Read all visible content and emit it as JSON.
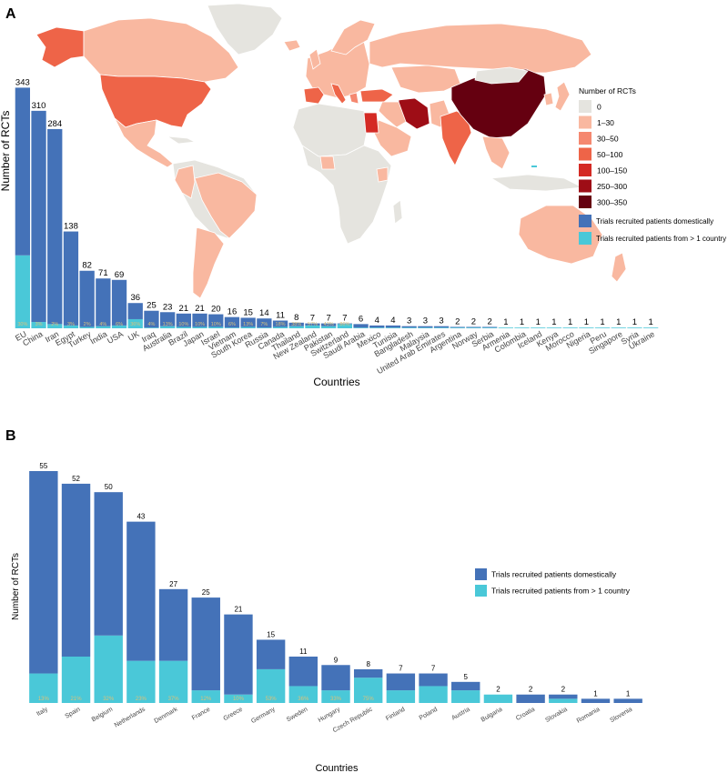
{
  "colors": {
    "domestic": "#4472b8",
    "multi": "#4ac8d8",
    "pct_text": "#d9c27a",
    "land_default": "#e5e4df",
    "ocean": "#ffffff",
    "legend_scale": [
      "#e5e4df",
      "#f9b8a0",
      "#f58870",
      "#ee6448",
      "#d42a24",
      "#9e0d16",
      "#650010"
    ]
  },
  "chart_data": [
    {
      "type": "bar",
      "panel_label": "A",
      "xlabel": "Countries",
      "ylabel": "Number of RCTs",
      "ylim": [
        0,
        350
      ],
      "categories": [
        "EU",
        "China",
        "Iran",
        "Egypt",
        "Turkey",
        "India",
        "USA",
        "UK",
        "Iraq",
        "Australia",
        "Brazil",
        "Japan",
        "Israel",
        "Vietnam",
        "South Korea",
        "Russia",
        "Canada",
        "Thailand",
        "New Zealand",
        "Pakistan",
        "Switzerland",
        "Saudi Arabia",
        "Mexico",
        "Tunisia",
        "Bangladesh",
        "Malaysia",
        "United Arab Emirates",
        "Argentina",
        "Norway",
        "Serbia",
        "Armenia",
        "Colombia",
        "Iceland",
        "Kenya",
        "Morocco",
        "Nigeria",
        "Peru",
        "Singapore",
        "Syria",
        "Ukraine"
      ],
      "totals": [
        343,
        310,
        284,
        138,
        82,
        71,
        69,
        36,
        25,
        23,
        21,
        21,
        20,
        16,
        15,
        14,
        11,
        8,
        7,
        7,
        7,
        6,
        4,
        4,
        3,
        3,
        3,
        2,
        2,
        2,
        1,
        1,
        1,
        1,
        1,
        1,
        1,
        1,
        1,
        1
      ],
      "series": [
        {
          "name": "Trials recruited patients domestically",
          "values": [
            239,
            301,
            278,
            134,
            80,
            68,
            65,
            23,
            24,
            20,
            19,
            19,
            18,
            15,
            13,
            13,
            9,
            5,
            3,
            4,
            1,
            5,
            3,
            3,
            2,
            2,
            2,
            1,
            1,
            1,
            0,
            0,
            0,
            0,
            0,
            0,
            0,
            0,
            0,
            0
          ]
        },
        {
          "name": "Trials recruited patients from > 1 country",
          "values": [
            104,
            9,
            6,
            4,
            2,
            3,
            4,
            13,
            1,
            3,
            2,
            2,
            2,
            1,
            2,
            1,
            2,
            3,
            4,
            3,
            6,
            1,
            1,
            1,
            1,
            1,
            1,
            1,
            1,
            1,
            1,
            1,
            1,
            1,
            1,
            1,
            1,
            1,
            1,
            1
          ]
        }
      ],
      "percent_labels": [
        "30%",
        "3%",
        "2%",
        "3%",
        "2%",
        "4%",
        "6%",
        "36%",
        "4%",
        "13%",
        "10%",
        "10%",
        "10%",
        "6%",
        "13%",
        "7%",
        "18%",
        "38%",
        "57%",
        "43%",
        "86%",
        "",
        "",
        "",
        "",
        "",
        "",
        "",
        "",
        "",
        "",
        "",
        "",
        "",
        "",
        "",
        "",
        "",
        "",
        ""
      ],
      "legend": {
        "title": "Number of RCTs",
        "scale_labels": [
          "0",
          "1–30",
          "30–50",
          "50–100",
          "100–150",
          "250–300",
          "300–350"
        ],
        "series_labels": [
          "Trials recruited patients domestically",
          "Trials recruited patients from > 1 country"
        ]
      }
    },
    {
      "type": "bar",
      "panel_label": "B",
      "xlabel": "Countries",
      "ylabel": "Number of RCTs",
      "ylim": [
        0,
        55
      ],
      "categories": [
        "Italy",
        "Spain",
        "Belgium",
        "Netherlands",
        "Denmark",
        "France",
        "Greece",
        "Germany",
        "Sweden",
        "Hungary",
        "Czech Republic",
        "Finland",
        "Poland",
        "Austria",
        "Bulgaria",
        "Croatia",
        "Slovakia",
        "Romania",
        "Slovenia"
      ],
      "totals": [
        55,
        52,
        50,
        43,
        27,
        25,
        21,
        15,
        11,
        9,
        8,
        7,
        7,
        5,
        2,
        2,
        2,
        1,
        1
      ],
      "series": [
        {
          "name": "Trials recruited patients domestically",
          "values": [
            48,
            41,
            34,
            33,
            17,
            22,
            19,
            7,
            7,
            6,
            2,
            4,
            3,
            2,
            0,
            2,
            1,
            1,
            1
          ]
        },
        {
          "name": "Trials recruited patients from > 1 country",
          "values": [
            7,
            11,
            16,
            10,
            10,
            3,
            2,
            8,
            4,
            3,
            6,
            3,
            4,
            3,
            2,
            0,
            1,
            0,
            0
          ]
        }
      ],
      "percent_labels": [
        "13%",
        "21%",
        "32%",
        "23%",
        "37%",
        "12%",
        "10%",
        "53%",
        "36%",
        "33%",
        "75%",
        "",
        "",
        "",
        "",
        "",
        "",
        "",
        ""
      ],
      "legend": {
        "series_labels": [
          "Trials recruited patients domestically",
          "Trials recruited patients from > 1 country"
        ]
      }
    }
  ]
}
